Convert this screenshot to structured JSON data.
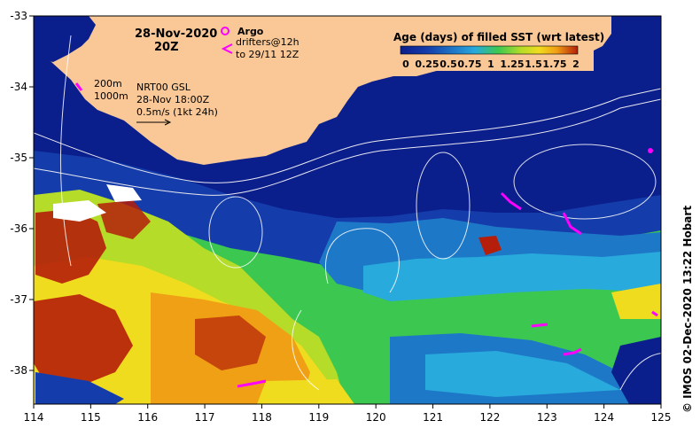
{
  "map": {
    "date_line": "28-Nov-2020",
    "time_line": "20Z",
    "argo_label": "Argo",
    "drifters_label": "drifters@12h",
    "drifters_to": "to 29/11 12Z",
    "depth_200": "200m",
    "depth_1000": "1000m",
    "product": "NRT00 GSL",
    "product_time": "28-Nov 18:00Z",
    "vector_scale": "0.5m/s (1kt 24h)",
    "credit": "©  IMOS 02-Dec-2020 13:22 Hobart"
  },
  "legend": {
    "title": "Age (days) of filled SST (wrt latest)",
    "ticks": [
      "0",
      "0.25",
      "0.5",
      "0.75",
      "1",
      "1.25",
      "1.5",
      "1.75",
      "2"
    ]
  },
  "axes": {
    "longitudes": [
      "114",
      "115",
      "116",
      "117",
      "118",
      "119",
      "120",
      "121",
      "122",
      "123",
      "124",
      "125"
    ],
    "latitudes": [
      "-33",
      "-34",
      "-35",
      "-36",
      "-37",
      "-38"
    ]
  },
  "colors": {
    "land": "#fac896",
    "deep_blue": "#0a1e8c",
    "mid_blue": "#143caa",
    "light_blue": "#1e78c8",
    "cyan": "#28aadc",
    "green": "#3cc850",
    "lime": "#b4dc28",
    "yellow": "#f0dc1e",
    "orange": "#f0a014",
    "red": "#b41e0a",
    "magenta": "#ff00ff"
  }
}
